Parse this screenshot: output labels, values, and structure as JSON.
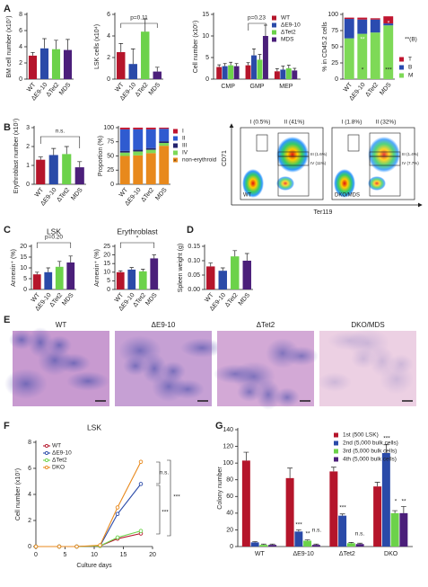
{
  "panel_labels": [
    "A",
    "B",
    "C",
    "D",
    "E",
    "F",
    "G"
  ],
  "flow": {
    "y_label": "CD71",
    "x_label": "Ter119",
    "plots": [
      {
        "sample": "WT",
        "gates": [
          "I (0.5%)",
          "II (41%)",
          "III (1.6%)",
          "IV (11%)"
        ]
      },
      {
        "sample": "DKO/MDS",
        "gates": [
          "I (1.8%)",
          "II (32%)",
          "III (1.4%)",
          "IV (7.7%)"
        ]
      }
    ]
  },
  "histology": [
    "WT",
    "ΔE9-10",
    "ΔTet2",
    "DKO/MDS"
  ],
  "chart_data": [
    {
      "type": "bar",
      "ylabel": "BM cell number (x10⁷)",
      "categories": [
        "WT",
        "ΔE9-10",
        "ΔTet2",
        "MDS"
      ],
      "values": [
        2.9,
        3.8,
        3.7,
        3.6
      ],
      "errors": [
        0.4,
        1.2,
        1.1,
        1.3
      ],
      "colors": [
        "#b5152b",
        "#2a4aa8",
        "#6cd24a",
        "#4b1f7a"
      ],
      "ylim": [
        0,
        8
      ],
      "yticks": [
        0,
        2,
        4,
        6,
        8
      ]
    },
    {
      "type": "bar",
      "ylabel": "LSK cells (x10⁴)",
      "categories": [
        "WT",
        "ΔE9-10",
        "ΔTet2",
        "MDS"
      ],
      "values": [
        2.5,
        1.4,
        4.4,
        0.7
      ],
      "errors": [
        0.8,
        1.4,
        1.2,
        0.4
      ],
      "colors": [
        "#b5152b",
        "#2a4aa8",
        "#6cd24a",
        "#4b1f7a"
      ],
      "ylim": [
        0,
        6
      ],
      "yticks": [
        0,
        2,
        4,
        6
      ],
      "annotations": [
        "p=0.11"
      ]
    },
    {
      "type": "bar",
      "ylabel": "Cell number (x10⁵)",
      "categories": [
        "CMP",
        "GMP",
        "MEP"
      ],
      "ylim": [
        0,
        15
      ],
      "yticks": [
        0,
        5,
        10,
        15
      ],
      "annotations": [
        "p=0.23"
      ],
      "series": [
        {
          "name": "WT",
          "color": "#b5152b",
          "values": [
            2.8,
            3.2,
            1.8
          ],
          "errors": [
            0.5,
            0.6,
            0.6
          ]
        },
        {
          "name": "ΔE9-10",
          "color": "#2a4aa8",
          "values": [
            3.0,
            5.5,
            2.2
          ],
          "errors": [
            0.6,
            1.5,
            0.8
          ]
        },
        {
          "name": "ΔTet2",
          "color": "#6cd24a",
          "values": [
            3.2,
            4.5,
            2.5
          ],
          "errors": [
            0.7,
            1.2,
            0.7
          ]
        },
        {
          "name": "MDS",
          "color": "#4b1f7a",
          "values": [
            3.0,
            10,
            2.0
          ],
          "errors": [
            0.6,
            2.5,
            0.5
          ]
        }
      ]
    },
    {
      "type": "bar",
      "stacked": true,
      "ylabel": "% in CD45.2 cells",
      "categories": [
        "WT",
        "ΔE9-10",
        "ΔTet2",
        "MDS"
      ],
      "ylim": [
        0,
        100
      ],
      "yticks": [
        0,
        25,
        50,
        75,
        100
      ],
      "annotations": [
        "**",
        "*",
        "***",
        "*",
        "**(B)"
      ],
      "series": [
        {
          "name": "M",
          "color": "#7ed957",
          "values": [
            63,
            70,
            72,
            83
          ]
        },
        {
          "name": "B",
          "color": "#2a4bb0",
          "values": [
            30,
            22,
            20,
            3
          ]
        },
        {
          "name": "T",
          "color": "#c0152f",
          "values": [
            2,
            3,
            2,
            11
          ]
        }
      ]
    },
    {
      "type": "bar",
      "ylabel": "Erythroblast number (x10⁷)",
      "categories": [
        "WT",
        "ΔE9-10",
        "ΔTet2",
        "MDS"
      ],
      "values": [
        1.3,
        1.55,
        1.6,
        0.9
      ],
      "errors": [
        0.15,
        0.35,
        0.4,
        0.3
      ],
      "colors": [
        "#b5152b",
        "#2a4aa8",
        "#6cd24a",
        "#4b1f7a"
      ],
      "ylim": [
        0,
        3
      ],
      "yticks": [
        0,
        1,
        2,
        3
      ],
      "annotations": [
        "n.s."
      ]
    },
    {
      "type": "bar",
      "stacked": true,
      "ylabel": "Proportion (%)",
      "categories": [
        "WT",
        "ΔE9-10",
        "ΔTet2",
        "MDS"
      ],
      "ylim": [
        0,
        100
      ],
      "yticks": [
        0,
        25,
        50,
        75,
        100
      ],
      "annotations": [
        "*"
      ],
      "series": [
        {
          "name": "non-erythroid",
          "color": "#e8891c",
          "values": [
            50,
            51,
            55,
            68
          ]
        },
        {
          "name": "IV",
          "color": "#7ed957",
          "values": [
            6,
            7,
            6,
            5
          ]
        },
        {
          "name": "III",
          "color": "#23236e",
          "values": [
            3,
            3,
            3,
            3
          ]
        },
        {
          "name": "II",
          "color": "#2f5bd0",
          "values": [
            38,
            36,
            33,
            22
          ]
        },
        {
          "name": "I",
          "color": "#c0152f",
          "values": [
            3,
            3,
            3,
            2
          ]
        }
      ]
    },
    {
      "type": "bar",
      "title": "LSK",
      "ylabel": "Annexin⁺ (%)",
      "categories": [
        "WT",
        "ΔE9-10",
        "ΔTet2",
        "MDS"
      ],
      "values": [
        7,
        8,
        10.5,
        12.5
      ],
      "errors": [
        1,
        2,
        2.5,
        3
      ],
      "colors": [
        "#b5152b",
        "#2a4aa8",
        "#6cd24a",
        "#4b1f7a"
      ],
      "ylim": [
        0,
        20
      ],
      "yticks": [
        0,
        5,
        10,
        15,
        20
      ],
      "annotations": [
        "p=0.20"
      ]
    },
    {
      "type": "bar",
      "title": "Erythroblast",
      "ylabel": "Annexin⁺ (%)",
      "categories": [
        "WT",
        "ΔE9-10",
        "ΔTet2",
        "MDS"
      ],
      "values": [
        10,
        11.5,
        10.5,
        18
      ],
      "errors": [
        0.8,
        1.2,
        1.2,
        2
      ],
      "colors": [
        "#b5152b",
        "#2a4aa8",
        "#6cd24a",
        "#4b1f7a"
      ],
      "ylim": [
        0,
        25
      ],
      "yticks": [
        0,
        5,
        10,
        15,
        20,
        25
      ],
      "annotations": [
        "*"
      ]
    },
    {
      "type": "bar",
      "ylabel": "Spleen weight (g)",
      "categories": [
        "WT",
        "ΔE9-10",
        "ΔTet2",
        "MDS"
      ],
      "values": [
        0.08,
        0.065,
        0.115,
        0.1
      ],
      "errors": [
        0.012,
        0.01,
        0.02,
        0.025
      ],
      "colors": [
        "#b5152b",
        "#2a4aa8",
        "#6cd24a",
        "#4b1f7a"
      ],
      "ylim": [
        0,
        0.15
      ],
      "yticks": [
        {
          "value": 0,
          "label": "0.00"
        },
        0.05,
        {
          "value": 0.1,
          "label": "0.10"
        },
        0.15
      ]
    },
    {
      "type": "line",
      "title": "LSK",
      "ylabel": "Cell number (x10⁷)",
      "xlabel": "Culture days",
      "x": [
        0,
        4,
        7,
        11,
        14,
        18
      ],
      "xlim": [
        0,
        20
      ],
      "xticks": [
        0,
        5,
        10,
        15,
        20
      ],
      "ylim": [
        0,
        8
      ],
      "yticks": [
        0,
        2,
        4,
        6,
        8
      ],
      "annotations": [
        "n.s.",
        "***",
        "***"
      ],
      "series": [
        {
          "name": "WT",
          "color": "#b5152b",
          "values": [
            0,
            0,
            0,
            0.05,
            0.6,
            1.0
          ]
        },
        {
          "name": "ΔE9-10",
          "color": "#2a4aa8",
          "values": [
            0,
            0,
            0,
            0.05,
            2.5,
            4.8
          ]
        },
        {
          "name": "ΔTet2",
          "color": "#6cd24a",
          "values": [
            0,
            0,
            0,
            0.05,
            0.7,
            1.2
          ]
        },
        {
          "name": "DKO",
          "color": "#e8891c",
          "values": [
            0,
            0,
            0,
            0.1,
            3.0,
            6.5
          ]
        }
      ]
    },
    {
      "type": "bar",
      "ylabel": "Colony number",
      "categories": [
        "WT",
        "ΔE9-10",
        "ΔTet2",
        "DKO"
      ],
      "ylim": [
        0,
        140
      ],
      "yticks": [
        0,
        20,
        40,
        60,
        80,
        100,
        120,
        140
      ],
      "annotations": [
        "***",
        "**",
        "n.s.",
        "***",
        "n.s.",
        "***",
        "*",
        "**"
      ],
      "series": [
        {
          "name": "1st (500 LSK)",
          "color": "#b5152b",
          "values": [
            103,
            82,
            90,
            72
          ],
          "errors": [
            10,
            12,
            5,
            5
          ]
        },
        {
          "name": "2nd (5,000 bulk cells)",
          "color": "#2a4aa8",
          "values": [
            5,
            18,
            37,
            112
          ],
          "errors": [
            1,
            2,
            2,
            10
          ]
        },
        {
          "name": "3rd (5,000 bulk cells)",
          "color": "#6cd24a",
          "values": [
            2,
            7,
            4,
            40
          ],
          "errors": [
            1,
            1,
            1,
            3
          ]
        },
        {
          "name": "4th (5,000 bulk cells)",
          "color": "#4b1f7a",
          "values": [
            2,
            2,
            3,
            40
          ],
          "errors": [
            1,
            1,
            1,
            8
          ]
        }
      ]
    }
  ]
}
